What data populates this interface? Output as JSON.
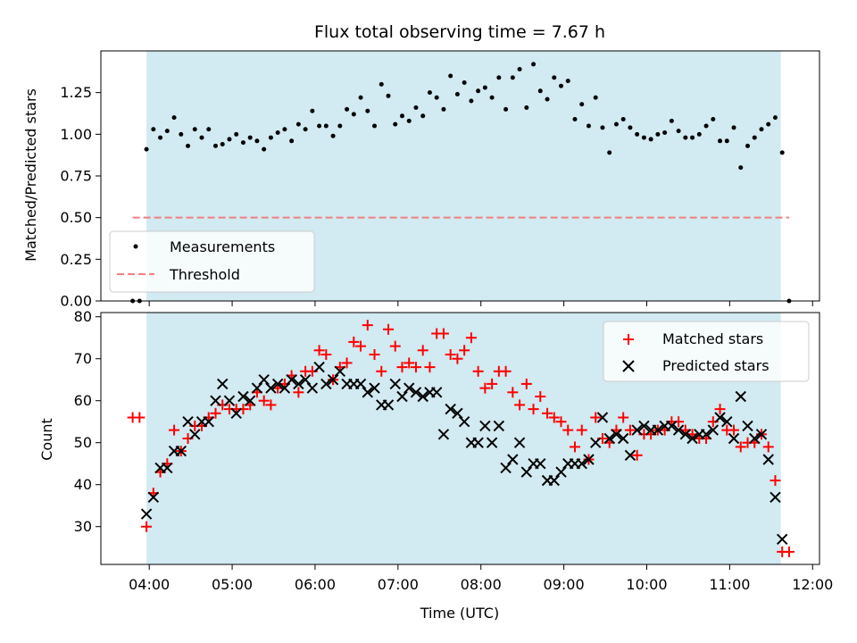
{
  "chart_data": [
    {
      "type": "scatter",
      "title": "Flux total observing time = 7.67 h",
      "ylabel": "Matched/Predicted stars",
      "xlabel": "",
      "xlim": [
        "03:25",
        "12:05"
      ],
      "ylim": [
        0,
        1.5
      ],
      "yticks": [
        0.0,
        0.25,
        0.5,
        0.75,
        1.0,
        1.25
      ],
      "ytick_labels": [
        "0.00",
        "0.25",
        "0.50",
        "0.75",
        "1.00",
        "1.25"
      ],
      "observing_window": [
        "03:58",
        "11:37"
      ],
      "grid": false,
      "legend_position": "lower-left",
      "series": [
        {
          "name": "Measurements",
          "marker": "dot",
          "color": "#000000",
          "x": [
            "03:48",
            "03:53",
            "03:58",
            "04:03",
            "04:08",
            "04:13",
            "04:18",
            "04:23",
            "04:28",
            "04:33",
            "04:38",
            "04:43",
            "04:48",
            "04:53",
            "04:58",
            "05:03",
            "05:08",
            "05:13",
            "05:18",
            "05:23",
            "05:28",
            "05:33",
            "05:38",
            "05:43",
            "05:48",
            "05:53",
            "05:58",
            "06:03",
            "06:08",
            "06:13",
            "06:18",
            "06:23",
            "06:28",
            "06:33",
            "06:38",
            "06:43",
            "06:48",
            "06:53",
            "06:58",
            "07:03",
            "07:08",
            "07:13",
            "07:18",
            "07:23",
            "07:28",
            "07:33",
            "07:38",
            "07:43",
            "07:48",
            "07:53",
            "07:58",
            "08:03",
            "08:08",
            "08:13",
            "08:18",
            "08:23",
            "08:28",
            "08:33",
            "08:38",
            "08:43",
            "08:48",
            "08:53",
            "08:58",
            "09:03",
            "09:08",
            "09:13",
            "09:18",
            "09:23",
            "09:28",
            "09:33",
            "09:38",
            "09:43",
            "09:48",
            "09:53",
            "09:58",
            "10:03",
            "10:08",
            "10:13",
            "10:18",
            "10:23",
            "10:28",
            "10:33",
            "10:38",
            "10:43",
            "10:48",
            "10:53",
            "10:58",
            "11:03",
            "11:08",
            "11:13",
            "11:18",
            "11:23",
            "11:28",
            "11:33",
            "11:38",
            "11:43"
          ],
          "y": [
            0.0,
            0.0,
            0.91,
            1.03,
            0.98,
            1.02,
            1.1,
            1.0,
            0.93,
            1.03,
            0.98,
            1.03,
            0.93,
            0.94,
            0.97,
            1.0,
            0.95,
            0.98,
            0.96,
            0.91,
            0.98,
            1.01,
            1.03,
            0.96,
            1.06,
            1.03,
            1.14,
            1.05,
            1.05,
            0.99,
            1.05,
            1.15,
            1.12,
            1.22,
            1.14,
            1.05,
            1.3,
            1.23,
            1.06,
            1.11,
            1.08,
            1.16,
            1.11,
            1.25,
            1.22,
            1.15,
            1.35,
            1.24,
            1.31,
            1.2,
            1.26,
            1.28,
            1.22,
            1.34,
            1.15,
            1.34,
            1.39,
            1.16,
            1.42,
            1.26,
            1.21,
            1.34,
            1.29,
            1.32,
            1.09,
            1.18,
            1.05,
            1.22,
            1.04,
            0.89,
            1.06,
            1.09,
            1.04,
            1.0,
            0.98,
            0.97,
            1.0,
            1.01,
            1.08,
            1.02,
            0.98,
            0.98,
            1.0,
            1.05,
            1.09,
            0.96,
            0.96,
            1.04,
            0.8,
            0.93,
            0.98,
            1.03,
            1.06,
            1.1,
            0.89,
            0.0
          ]
        },
        {
          "name": "Threshold",
          "marker": "dashed-line",
          "color": "#f07f7f",
          "x": [
            "03:48",
            "11:43"
          ],
          "y": [
            0.5,
            0.5
          ]
        }
      ]
    },
    {
      "type": "scatter",
      "title": "",
      "xlabel": "Time (UTC)",
      "ylabel": "Count",
      "xlim": [
        "03:25",
        "12:05"
      ],
      "ylim": [
        21,
        81
      ],
      "xticks": [
        "04:00",
        "05:00",
        "06:00",
        "07:00",
        "08:00",
        "09:00",
        "10:00",
        "11:00",
        "12:00"
      ],
      "yticks": [
        30,
        40,
        50,
        60,
        70,
        80
      ],
      "ytick_labels": [
        "30",
        "40",
        "50",
        "60",
        "70",
        "80"
      ],
      "observing_window": [
        "03:58",
        "11:37"
      ],
      "grid": false,
      "legend_position": "upper-right",
      "series": [
        {
          "name": "Matched stars",
          "marker": "plus",
          "color": "#ff0000",
          "x": [
            "03:48",
            "03:53",
            "03:58",
            "04:03",
            "04:08",
            "04:13",
            "04:18",
            "04:23",
            "04:28",
            "04:33",
            "04:38",
            "04:43",
            "04:48",
            "04:53",
            "04:58",
            "05:03",
            "05:08",
            "05:13",
            "05:18",
            "05:23",
            "05:28",
            "05:33",
            "05:38",
            "05:43",
            "05:48",
            "05:53",
            "05:58",
            "06:03",
            "06:08",
            "06:13",
            "06:18",
            "06:23",
            "06:28",
            "06:33",
            "06:38",
            "06:43",
            "06:48",
            "06:53",
            "06:58",
            "07:03",
            "07:08",
            "07:13",
            "07:18",
            "07:23",
            "07:28",
            "07:33",
            "07:38",
            "07:43",
            "07:48",
            "07:53",
            "07:58",
            "08:03",
            "08:08",
            "08:13",
            "08:18",
            "08:23",
            "08:28",
            "08:33",
            "08:38",
            "08:43",
            "08:48",
            "08:53",
            "08:58",
            "09:03",
            "09:08",
            "09:13",
            "09:18",
            "09:23",
            "09:28",
            "09:33",
            "09:38",
            "09:43",
            "09:48",
            "09:53",
            "09:58",
            "10:03",
            "10:08",
            "10:13",
            "10:18",
            "10:23",
            "10:28",
            "10:33",
            "10:38",
            "10:43",
            "10:48",
            "10:53",
            "10:58",
            "11:03",
            "11:08",
            "11:13",
            "11:18",
            "11:23",
            "11:28",
            "11:33",
            "11:38",
            "11:43"
          ],
          "y": [
            56,
            56,
            30,
            38,
            43,
            45,
            53,
            48,
            51,
            54,
            54,
            56,
            57,
            59,
            58,
            58,
            58,
            59,
            62,
            60,
            59,
            63,
            64,
            66,
            62,
            67,
            67,
            72,
            71,
            65,
            68,
            69,
            74,
            73,
            78,
            71,
            67,
            77,
            73,
            68,
            69,
            68,
            72,
            68,
            76,
            76,
            71,
            70,
            72,
            75,
            67,
            63,
            64,
            67,
            67,
            62,
            59,
            64,
            58,
            61,
            57,
            56,
            55,
            53,
            49,
            53,
            46,
            56,
            51,
            50,
            53,
            56,
            53,
            47,
            52,
            52,
            53,
            53,
            55,
            55,
            53,
            52,
            51,
            51,
            55,
            58,
            53,
            53,
            49,
            50,
            50,
            52,
            49,
            41,
            24,
            24
          ]
        },
        {
          "name": "Predicted stars",
          "marker": "x",
          "color": "#000000",
          "x": [
            "03:58",
            "04:03",
            "04:08",
            "04:13",
            "04:18",
            "04:23",
            "04:28",
            "04:33",
            "04:38",
            "04:43",
            "04:48",
            "04:53",
            "04:58",
            "05:03",
            "05:08",
            "05:13",
            "05:18",
            "05:23",
            "05:28",
            "05:33",
            "05:38",
            "05:43",
            "05:48",
            "05:53",
            "05:58",
            "06:03",
            "06:08",
            "06:13",
            "06:18",
            "06:23",
            "06:28",
            "06:33",
            "06:38",
            "06:43",
            "06:48",
            "06:53",
            "06:58",
            "07:03",
            "07:08",
            "07:13",
            "07:18",
            "07:23",
            "07:28",
            "07:33",
            "07:38",
            "07:43",
            "07:48",
            "07:53",
            "07:58",
            "08:03",
            "08:08",
            "08:13",
            "08:18",
            "08:23",
            "08:28",
            "08:33",
            "08:38",
            "08:43",
            "08:48",
            "08:53",
            "08:58",
            "09:03",
            "09:08",
            "09:13",
            "09:18",
            "09:23",
            "09:28",
            "09:33",
            "09:38",
            "09:43",
            "09:48",
            "09:53",
            "09:58",
            "10:03",
            "10:08",
            "10:13",
            "10:18",
            "10:23",
            "10:28",
            "10:33",
            "10:38",
            "10:43",
            "10:48",
            "10:53",
            "10:58",
            "11:03",
            "11:08",
            "11:13",
            "11:18",
            "11:23",
            "11:28",
            "11:33",
            "11:38"
          ],
          "y": [
            33,
            37,
            44,
            44,
            48,
            48,
            55,
            52,
            55,
            55,
            60,
            64,
            60,
            57,
            61,
            60,
            63,
            65,
            63,
            64,
            63,
            65,
            64,
            65,
            63,
            68,
            64,
            65,
            67,
            64,
            64,
            64,
            62,
            63,
            59,
            59,
            64,
            61,
            63,
            62,
            61,
            62,
            62,
            52,
            58,
            57,
            55,
            50,
            50,
            54,
            50,
            54,
            44,
            46,
            50,
            43,
            45,
            45,
            41,
            41,
            43,
            45,
            45,
            45,
            46,
            50,
            56,
            51,
            52,
            51,
            47,
            53,
            54,
            53,
            53,
            54,
            54,
            53,
            52,
            51,
            52,
            52,
            53,
            56,
            55,
            51,
            61,
            54,
            51,
            52,
            46,
            37,
            27
          ]
        }
      ]
    }
  ]
}
